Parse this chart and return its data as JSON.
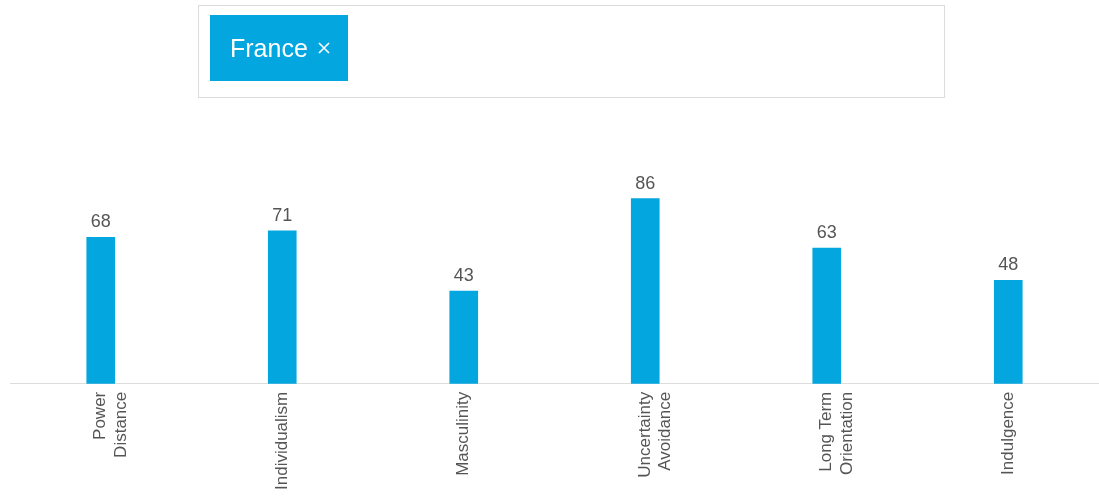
{
  "chart_data": {
    "type": "bar",
    "title": "France",
    "categories": [
      "Power Distance",
      "Individualism",
      "Masculinity",
      "Uncertainty Avoidance",
      "Long Term Orientation",
      "Indulgence"
    ],
    "values": [
      68,
      71,
      43,
      86,
      63,
      48
    ],
    "color": "#03a6df",
    "data_labels": true
  }
}
